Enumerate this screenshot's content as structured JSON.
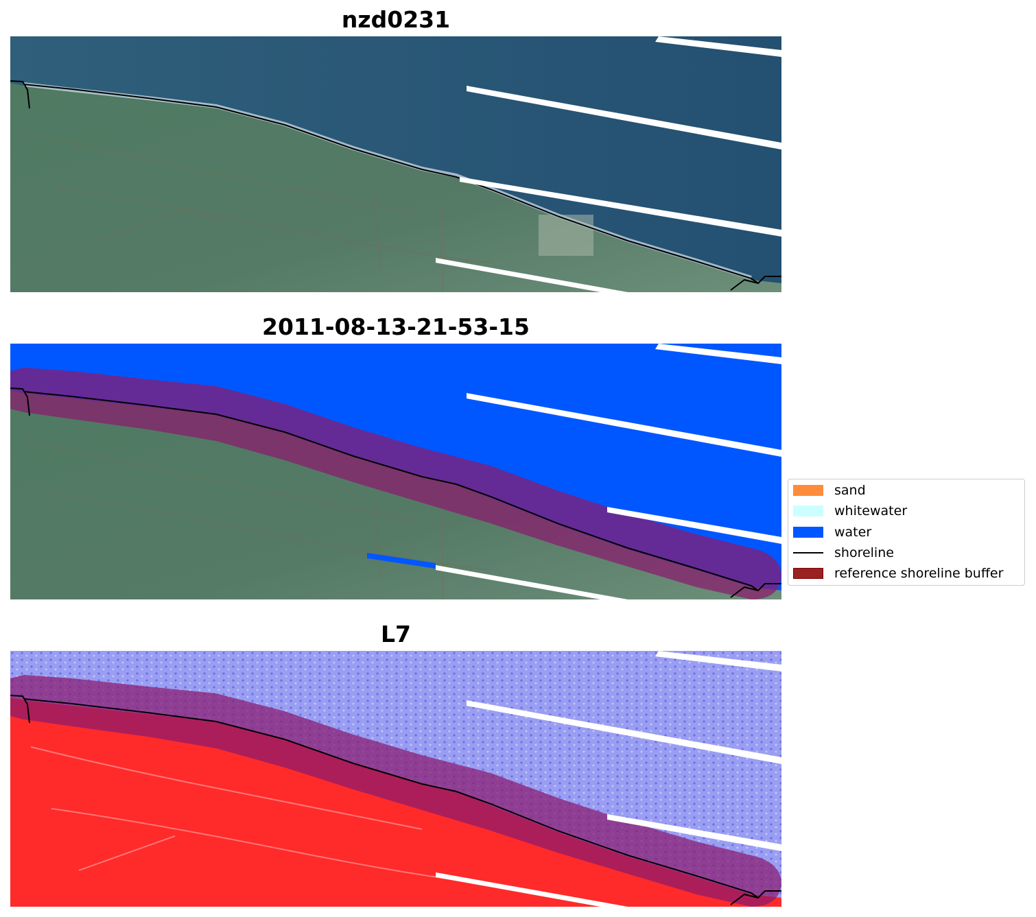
{
  "panels": [
    {
      "title": "nzd0231"
    },
    {
      "title": "2011-08-13-21-53-15"
    },
    {
      "title": "L7"
    }
  ],
  "legend": {
    "items": [
      {
        "label": "sand",
        "kind": "patch",
        "color": "#ff8c3a"
      },
      {
        "label": "whitewater",
        "kind": "patch",
        "color": "#ccffff"
      },
      {
        "label": "water",
        "kind": "patch",
        "color": "#0057ff"
      },
      {
        "label": "shoreline",
        "kind": "line",
        "color": "#000000"
      },
      {
        "label": "reference shoreline buffer",
        "kind": "patch",
        "color": "#992222",
        "edge": "#800000"
      }
    ]
  },
  "colors": {
    "ocean_rgb": "#2d5a78",
    "land_rgb": "#4e7560",
    "classified_water": "#0057ff",
    "buffer_overlay": "#8b1a6e",
    "index_water": "#8a8ef0",
    "index_land": "#ff2a2a",
    "scanline_gap": "#ffffff"
  }
}
